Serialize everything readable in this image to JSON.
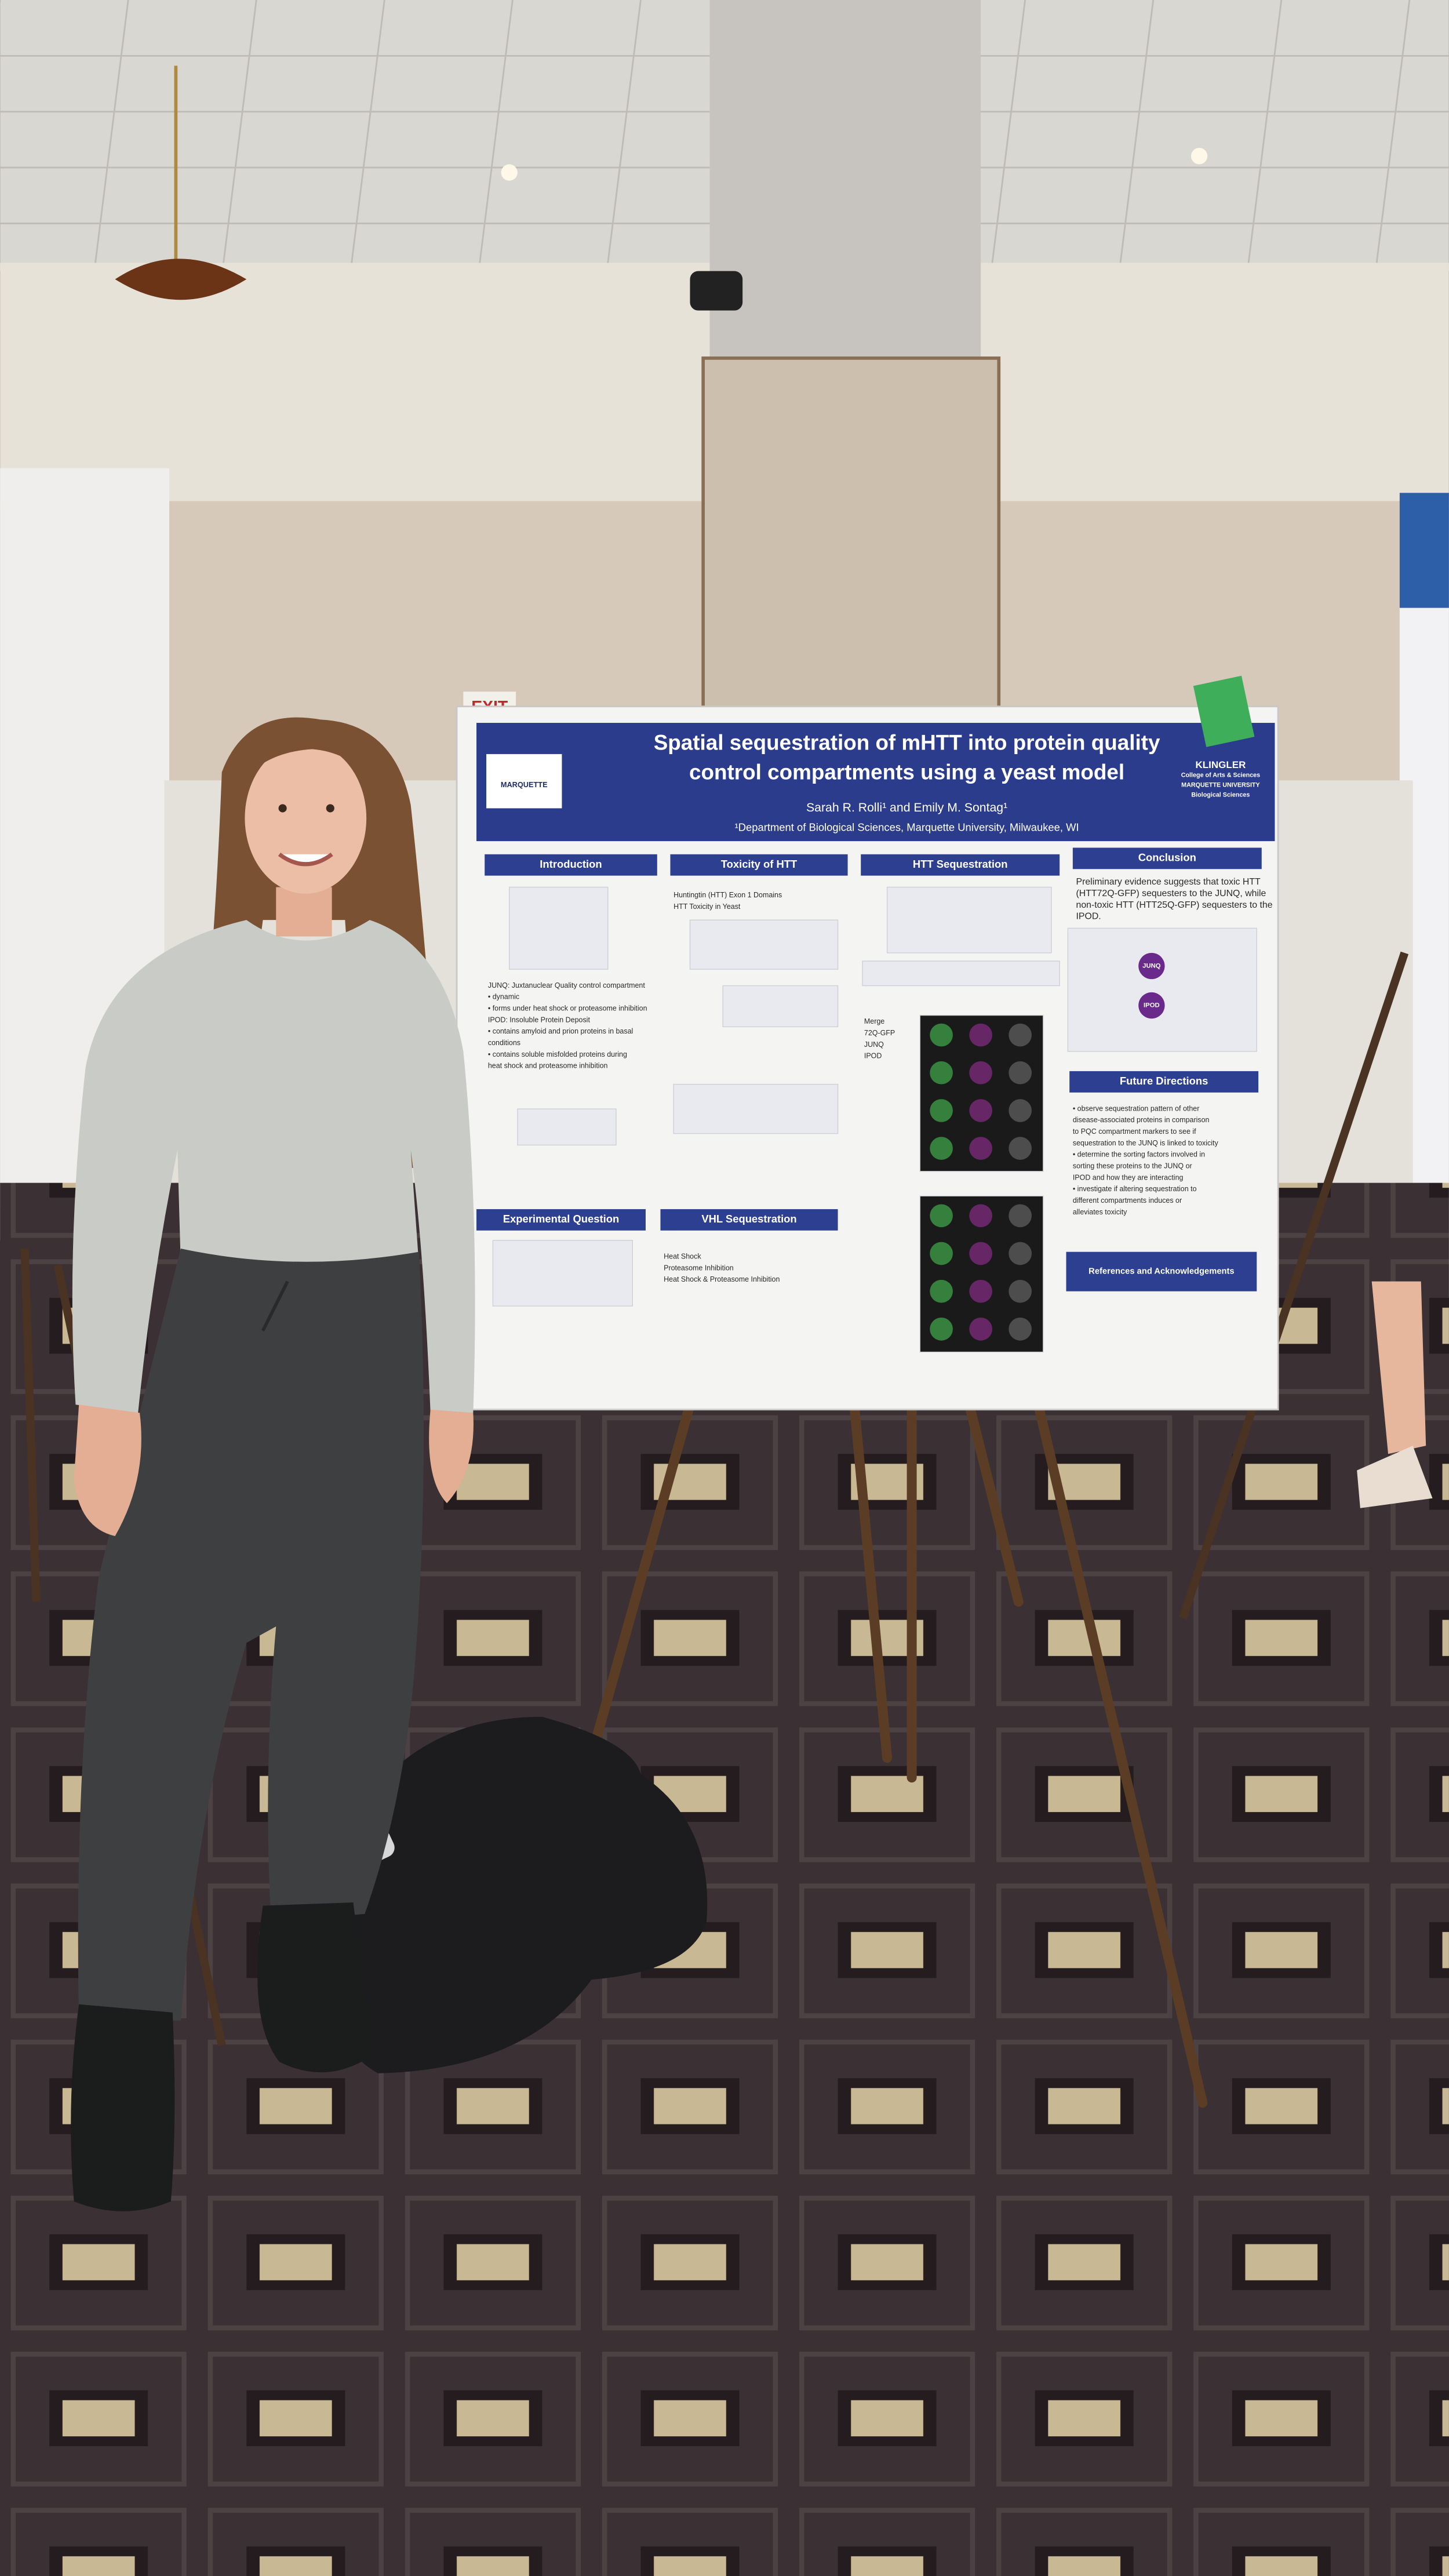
{
  "scene": {
    "exit_sign": "EXIT"
  },
  "poster": {
    "title_lines": [
      "Spatial sequestration of mHTT into protein quality",
      "control compartments using a yeast model"
    ],
    "authors": "Sarah R. Rolli¹ and Emily M. Sontag¹",
    "affiliation": "¹Department of Biological Sciences, Marquette University, Milwaukee, WI",
    "logo_left": "MARQUETTE",
    "logo_right": [
      "KLINGLER",
      "College of Arts & Sciences",
      "MARQUETTE UNIVERSITY",
      "Biological Sciences"
    ],
    "diagram_labels": [
      "JUNQ",
      "IPOD"
    ],
    "sections": [
      {
        "heading": "Introduction",
        "lines": [
          "JUNQ: Juxtanuclear Quality control compartment",
          "• dynamic",
          "• forms under heat shock or proteasome inhibition",
          "IPOD: Insoluble Protein Deposit",
          "• contains amyloid and prion proteins in basal",
          "  conditions",
          "• contains soluble misfolded proteins during",
          "  heat shock and proteasome inhibition"
        ]
      },
      {
        "heading": "Toxicity of HTT",
        "lines": [
          "Huntingtin (HTT) Exon 1 Domains",
          "HTT Toxicity in Yeast"
        ]
      },
      {
        "heading": "HTT Sequestration",
        "lines": [
          "Merge",
          "72Q-GFP",
          "JUNQ",
          "IPOD"
        ]
      },
      {
        "heading": "Conclusion",
        "lines": [
          "Preliminary evidence suggests that toxic HTT",
          "(HTT72Q-GFP) sequesters to the JUNQ, while",
          "non-toxic HTT (HTT25Q-GFP) sequesters to the",
          "IPOD."
        ]
      },
      {
        "heading": "Experimental Question"
      },
      {
        "heading": "VHL Sequestration",
        "lines": [
          "Heat Shock",
          "Proteasome Inhibition",
          "Heat Shock & Proteasome Inhibition"
        ]
      },
      {
        "heading": "Future Directions",
        "lines": [
          "• observe sequestration pattern of other",
          "  disease-associated proteins in comparison",
          "  to PQC compartment markers to see if",
          "  sequestration to the JUNQ is linked to toxicity",
          "• determine the sorting factors involved in",
          "  sorting these proteins to the JUNQ or",
          "  IPOD and how they are interacting",
          "• investigate if altering sequestration to",
          "  different compartments induces or",
          "  alleviates toxicity"
        ]
      },
      {
        "heading": "References and Acknowledgements"
      }
    ]
  }
}
